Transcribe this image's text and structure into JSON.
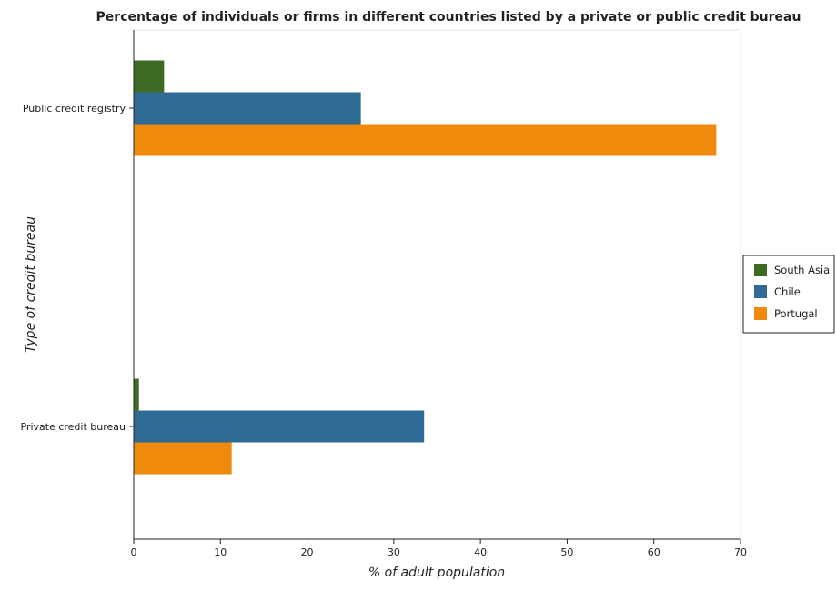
{
  "colors": {
    "south_asia": "#3d6b24",
    "chile": "#2f6b95",
    "portugal": "#ef8a0c"
  },
  "chart_data": {
    "type": "bar",
    "orientation": "horizontal",
    "title": "Percentage of individuals or firms in different countries listed by a private or public credit bureau",
    "xlabel": "% of adult population",
    "ylabel": "Type of credit bureau",
    "categories": [
      "Private credit bureau",
      "Public credit registry"
    ],
    "series": [
      {
        "name": "South Asia",
        "values": [
          0.6,
          3.5
        ]
      },
      {
        "name": "Chile",
        "values": [
          33.5,
          26.2
        ]
      },
      {
        "name": "Portugal",
        "values": [
          11.3,
          67.2
        ]
      }
    ],
    "xlim": [
      0,
      70
    ],
    "xticks": [
      "0",
      "10",
      "20",
      "30",
      "40",
      "50",
      "60",
      "70"
    ],
    "grid": false,
    "legend_position": "right"
  }
}
